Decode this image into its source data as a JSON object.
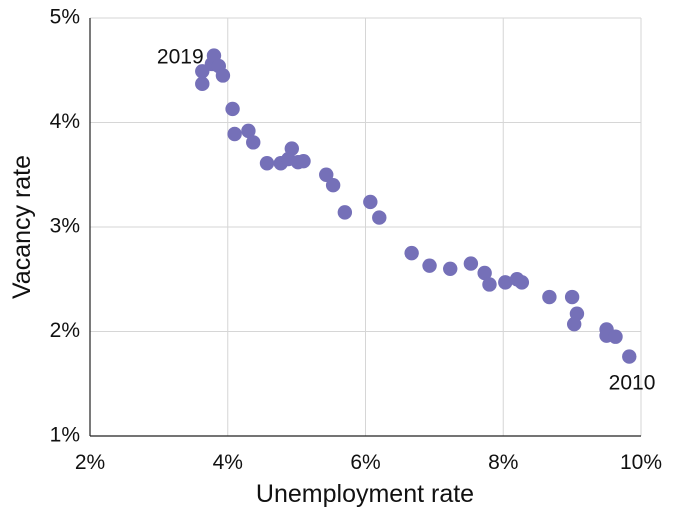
{
  "chart_data": {
    "type": "scatter",
    "xlabel": "Unemployment rate",
    "ylabel": "Vacancy rate",
    "xlim": [
      2,
      10
    ],
    "ylim": [
      1,
      5
    ],
    "xticks": [
      2,
      4,
      6,
      8,
      10
    ],
    "yticks": [
      1,
      2,
      3,
      4,
      5
    ],
    "x_tick_labels": [
      "2%",
      "4%",
      "6%",
      "8%",
      "10%"
    ],
    "y_tick_labels": [
      "1%",
      "2%",
      "3%",
      "4%",
      "5%"
    ],
    "grid": true,
    "marker_color": "#7570b8",
    "annotations": [
      {
        "text": "2019",
        "x": 3.65,
        "y": 4.62,
        "anchor": "end"
      },
      {
        "text": "2010",
        "x": 9.87,
        "y": 1.5,
        "anchor": "middle"
      }
    ],
    "series": [
      {
        "points": [
          {
            "x": 3.63,
            "y": 4.49
          },
          {
            "x": 3.63,
            "y": 4.37
          },
          {
            "x": 3.77,
            "y": 4.56
          },
          {
            "x": 3.8,
            "y": 4.64
          },
          {
            "x": 3.87,
            "y": 4.54
          },
          {
            "x": 3.93,
            "y": 4.45
          },
          {
            "x": 4.07,
            "y": 4.13
          },
          {
            "x": 4.1,
            "y": 3.89
          },
          {
            "x": 4.3,
            "y": 3.92
          },
          {
            "x": 4.37,
            "y": 3.81
          },
          {
            "x": 4.57,
            "y": 3.61
          },
          {
            "x": 4.77,
            "y": 3.61
          },
          {
            "x": 4.88,
            "y": 3.65
          },
          {
            "x": 4.93,
            "y": 3.75
          },
          {
            "x": 5.02,
            "y": 3.62
          },
          {
            "x": 5.1,
            "y": 3.63
          },
          {
            "x": 5.43,
            "y": 3.5
          },
          {
            "x": 5.53,
            "y": 3.4
          },
          {
            "x": 5.7,
            "y": 3.14
          },
          {
            "x": 6.07,
            "y": 3.24
          },
          {
            "x": 6.2,
            "y": 3.09
          },
          {
            "x": 6.67,
            "y": 2.75
          },
          {
            "x": 6.93,
            "y": 2.63
          },
          {
            "x": 7.23,
            "y": 2.6
          },
          {
            "x": 7.53,
            "y": 2.65
          },
          {
            "x": 7.73,
            "y": 2.56
          },
          {
            "x": 7.8,
            "y": 2.45
          },
          {
            "x": 8.03,
            "y": 2.47
          },
          {
            "x": 8.2,
            "y": 2.5
          },
          {
            "x": 8.27,
            "y": 2.47
          },
          {
            "x": 8.67,
            "y": 2.33
          },
          {
            "x": 9.0,
            "y": 2.33
          },
          {
            "x": 9.07,
            "y": 2.17
          },
          {
            "x": 9.03,
            "y": 2.07
          },
          {
            "x": 9.5,
            "y": 2.02
          },
          {
            "x": 9.5,
            "y": 1.96
          },
          {
            "x": 9.63,
            "y": 1.95
          },
          {
            "x": 9.83,
            "y": 1.76
          }
        ]
      }
    ]
  }
}
